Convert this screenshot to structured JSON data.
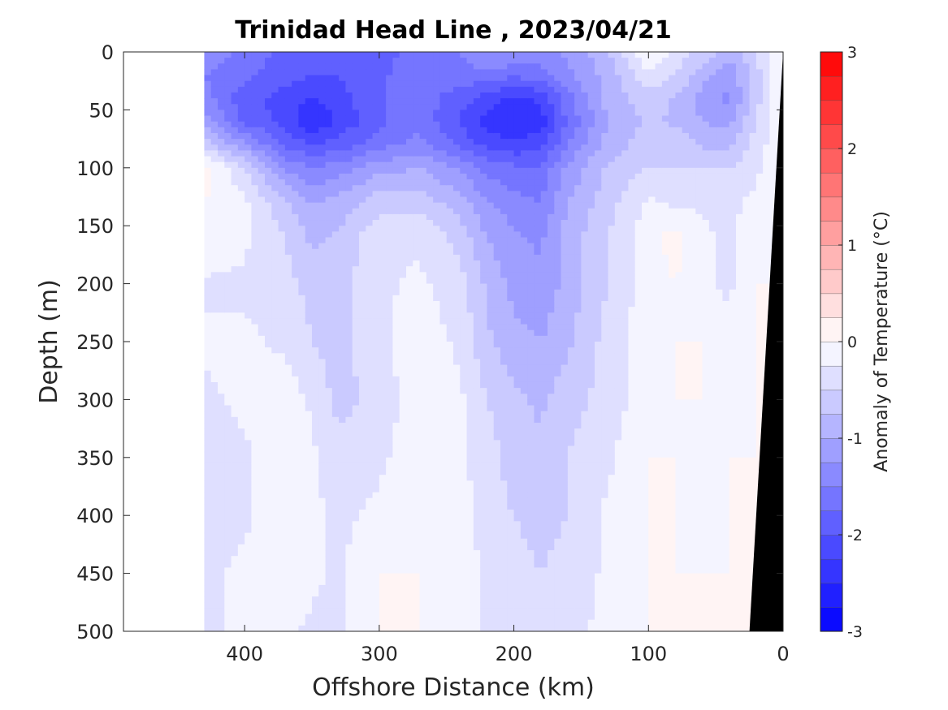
{
  "chart_data": {
    "type": "heatmap",
    "title": "Trinidad Head Line , 2023/04/21",
    "xlabel": "Offshore Distance (km)",
    "ylabel": "Depth (m)",
    "xlim": [
      490,
      0
    ],
    "ylim": [
      0,
      500
    ],
    "x_reversed": true,
    "y_reversed": true,
    "x_ticks": [
      400,
      300,
      200,
      100,
      0
    ],
    "x_tick_labels": [
      "400",
      "300",
      "200",
      "100",
      "0"
    ],
    "y_ticks": [
      0,
      50,
      100,
      150,
      200,
      250,
      300,
      350,
      400,
      450,
      500
    ],
    "y_tick_labels": [
      "0",
      "50",
      "100",
      "150",
      "200",
      "250",
      "300",
      "350",
      "400",
      "450",
      "500"
    ],
    "colorbar": {
      "label": "Anomaly of Temperature (°C)",
      "range": [
        -3,
        3
      ],
      "levels": 24,
      "ticks": [
        3,
        2,
        1,
        0,
        -1,
        -2,
        -3
      ],
      "tick_labels": [
        "3",
        "2",
        "1",
        "0",
        "-1",
        "-2",
        "-3"
      ],
      "low_color": "#0000ff",
      "mid_color": "#ffffff",
      "high_color": "#ff0000"
    },
    "data_extent_km": [
      430,
      0
    ],
    "bathymetry_color": "#000000",
    "bathymetry": [
      [
        25,
        500
      ],
      [
        0,
        0
      ]
    ],
    "zero_contour_color": "#000000",
    "features": [
      {
        "kind": "cold_core",
        "x": 200,
        "depth": 60,
        "anomaly": -2.5
      },
      {
        "kind": "cold_core",
        "x": 350,
        "depth": 55,
        "anomaly": -2.3
      },
      {
        "kind": "cold_core",
        "x": 40,
        "depth": 30,
        "anomaly": -1.5
      },
      {
        "kind": "warm_patch",
        "x": 420,
        "depth": 112,
        "anomaly": 0.2
      }
    ],
    "grid": false,
    "grid_anomaly": {
      "x": [
        430,
        400,
        370,
        350,
        330,
        300,
        270,
        240,
        220,
        200,
        180,
        160,
        130,
        100,
        80,
        60,
        40,
        20,
        0
      ],
      "depth": [
        0,
        20,
        40,
        60,
        80,
        100,
        130,
        160,
        200,
        250,
        300,
        350,
        400,
        450,
        500
      ],
      "rows": [
        [
          -1.3,
          -1.6,
          -1.8,
          -1.9,
          -1.9,
          -1.8,
          -1.7,
          -1.5,
          -1.2,
          -1.2,
          -1.4,
          -1.2,
          -0.8,
          0.0,
          -0.3,
          -0.6,
          -0.9,
          -0.5,
          0.0
        ],
        [
          -1.5,
          -1.7,
          -1.9,
          -2.0,
          -2.0,
          -1.8,
          -1.6,
          -1.6,
          -1.6,
          -1.7,
          -1.6,
          -1.3,
          -0.9,
          -0.3,
          -0.5,
          -0.9,
          -1.2,
          -0.6,
          0.0
        ],
        [
          -1.4,
          -1.9,
          -2.1,
          -2.3,
          -2.1,
          -1.8,
          -1.6,
          -1.9,
          -2.1,
          -2.3,
          -2.2,
          -1.6,
          -0.9,
          -0.6,
          -0.8,
          -1.1,
          -1.3,
          -0.6,
          0.0
        ],
        [
          -1.1,
          -1.8,
          -2.1,
          -2.5,
          -2.2,
          -1.8,
          -1.6,
          -2.0,
          -2.4,
          -2.5,
          -2.4,
          -1.7,
          -1.0,
          -0.7,
          -0.8,
          -1.0,
          -1.1,
          -0.5,
          0.0
        ],
        [
          -0.6,
          -1.2,
          -1.8,
          -2.0,
          -1.9,
          -1.6,
          -1.4,
          -1.8,
          -2.1,
          -2.2,
          -2.1,
          -1.5,
          -0.9,
          -0.6,
          -0.6,
          -0.8,
          -0.8,
          -0.4,
          0.0
        ],
        [
          0.1,
          -0.5,
          -1.3,
          -1.5,
          -1.4,
          -1.1,
          -1.0,
          -1.3,
          -1.6,
          -1.7,
          -1.7,
          -1.2,
          -0.7,
          -0.5,
          -0.5,
          -0.5,
          -0.5,
          -0.3,
          0.0
        ],
        [
          0.0,
          -0.2,
          -0.7,
          -1.0,
          -0.9,
          -0.6,
          -0.6,
          -0.9,
          -1.2,
          -1.4,
          -1.5,
          -1.0,
          -0.6,
          -0.2,
          -0.3,
          -0.3,
          -0.3,
          -0.2,
          0.0
        ],
        [
          0.0,
          -0.2,
          -0.5,
          -0.8,
          -0.7,
          -0.3,
          -0.3,
          -0.6,
          -1.0,
          -1.2,
          -1.3,
          -0.9,
          -0.5,
          -0.1,
          0.1,
          -0.2,
          -0.3,
          -0.1,
          0.0
        ],
        [
          -0.3,
          -0.3,
          -0.4,
          -0.6,
          -0.6,
          -0.3,
          -0.2,
          -0.4,
          -0.8,
          -1.1,
          -1.2,
          -0.9,
          -0.5,
          -0.1,
          0.0,
          -0.2,
          -0.3,
          0.0,
          0.0
        ],
        [
          -0.2,
          -0.2,
          -0.3,
          -0.5,
          -0.6,
          -0.3,
          -0.1,
          -0.3,
          -0.7,
          -0.9,
          -1.0,
          -0.8,
          -0.4,
          -0.1,
          0.0,
          0.0,
          -0.2,
          0.0,
          0.0
        ],
        [
          -0.3,
          -0.2,
          -0.1,
          -0.3,
          -0.6,
          -0.4,
          -0.1,
          -0.2,
          -0.5,
          -0.7,
          -0.8,
          -0.6,
          -0.4,
          -0.1,
          0.0,
          0.0,
          -0.1,
          0.0,
          0.0
        ],
        [
          -0.3,
          -0.3,
          0.0,
          -0.2,
          -0.4,
          -0.3,
          -0.1,
          -0.2,
          -0.4,
          -0.6,
          -0.7,
          -0.5,
          -0.3,
          0.0,
          0.0,
          -0.1,
          0.0,
          0.0,
          0.0
        ],
        [
          -0.3,
          -0.3,
          0.0,
          -0.2,
          -0.3,
          -0.2,
          0.0,
          -0.1,
          -0.4,
          -0.5,
          -0.6,
          -0.5,
          -0.2,
          0.0,
          0.0,
          -0.1,
          0.0,
          0.0,
          0.0
        ],
        [
          -0.3,
          -0.2,
          0.0,
          -0.2,
          -0.3,
          0.0,
          0.0,
          -0.1,
          -0.3,
          -0.4,
          -0.5,
          -0.4,
          -0.2,
          0.0,
          0.0,
          0.0,
          0.0,
          0.0,
          0.0
        ],
        [
          -0.3,
          -0.2,
          -0.2,
          -0.3,
          -0.3,
          0.0,
          0.0,
          -0.1,
          -0.3,
          -0.4,
          -0.4,
          -0.3,
          -0.2,
          0.0,
          0.0,
          0.0,
          0.0,
          0.0,
          0.0
        ]
      ]
    }
  }
}
